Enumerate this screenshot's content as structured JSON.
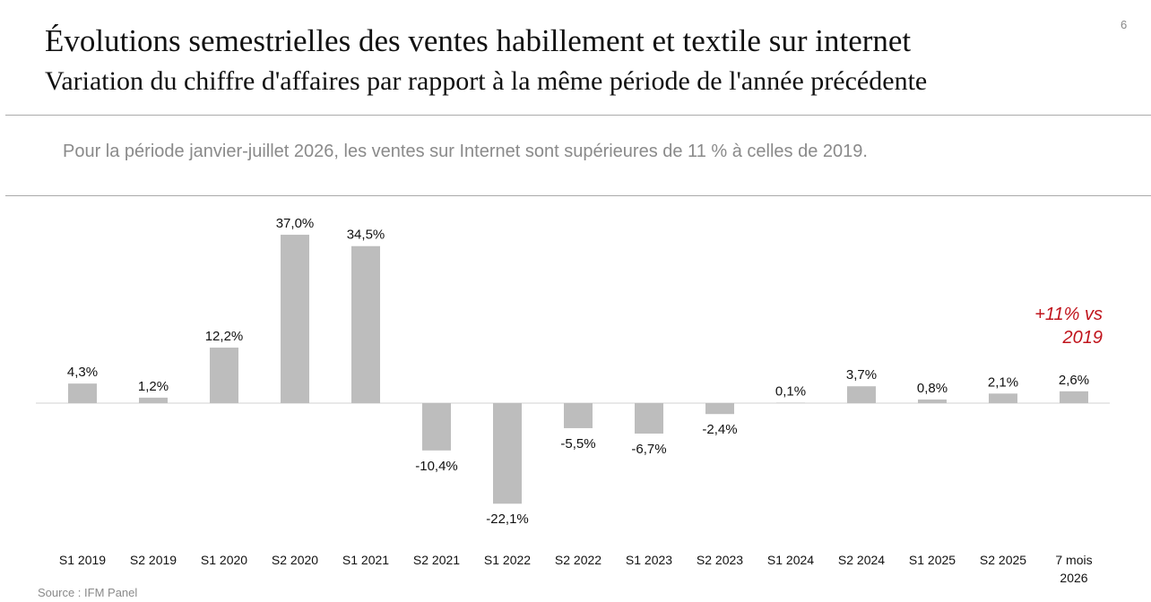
{
  "page_number": "6",
  "note": "Pour la période janvier-juillet 2026, les ventes sur Internet sont supérieures de 11 % à celles de 2019.",
  "source": "Source : IFM Panel",
  "chart_data": {
    "type": "bar",
    "title": "Évolutions semestrielles des ventes habillement et textile sur internet",
    "subtitle": "Variation du chiffre d'affaires par rapport à la même période de l'année précédente",
    "annotation": "+11% vs 2019",
    "categories": [
      "S1 2019",
      "S2 2019",
      "S1 2020",
      "S2 2020",
      "S1 2021",
      "S2 2021",
      "S1 2022",
      "S2 2022",
      "S1 2023",
      "S2 2023",
      "S1 2024",
      "S2 2024",
      "S1 2025",
      "S2 2025",
      "7 mois 2026"
    ],
    "values": [
      4.3,
      1.2,
      12.2,
      37.0,
      34.5,
      -10.4,
      -22.1,
      -5.5,
      -6.7,
      -2.4,
      0.1,
      3.7,
      0.8,
      2.1,
      2.6
    ],
    "value_labels": [
      "4,3%",
      "1,2%",
      "12,2%",
      "37,0%",
      "34,5%",
      "-10,4%",
      "-22,1%",
      "-5,5%",
      "-6,7%",
      "-2,4%",
      "0,1%",
      "3,7%",
      "0,8%",
      "2,1%",
      "2,6%"
    ],
    "color": "#bdbdbd"
  }
}
